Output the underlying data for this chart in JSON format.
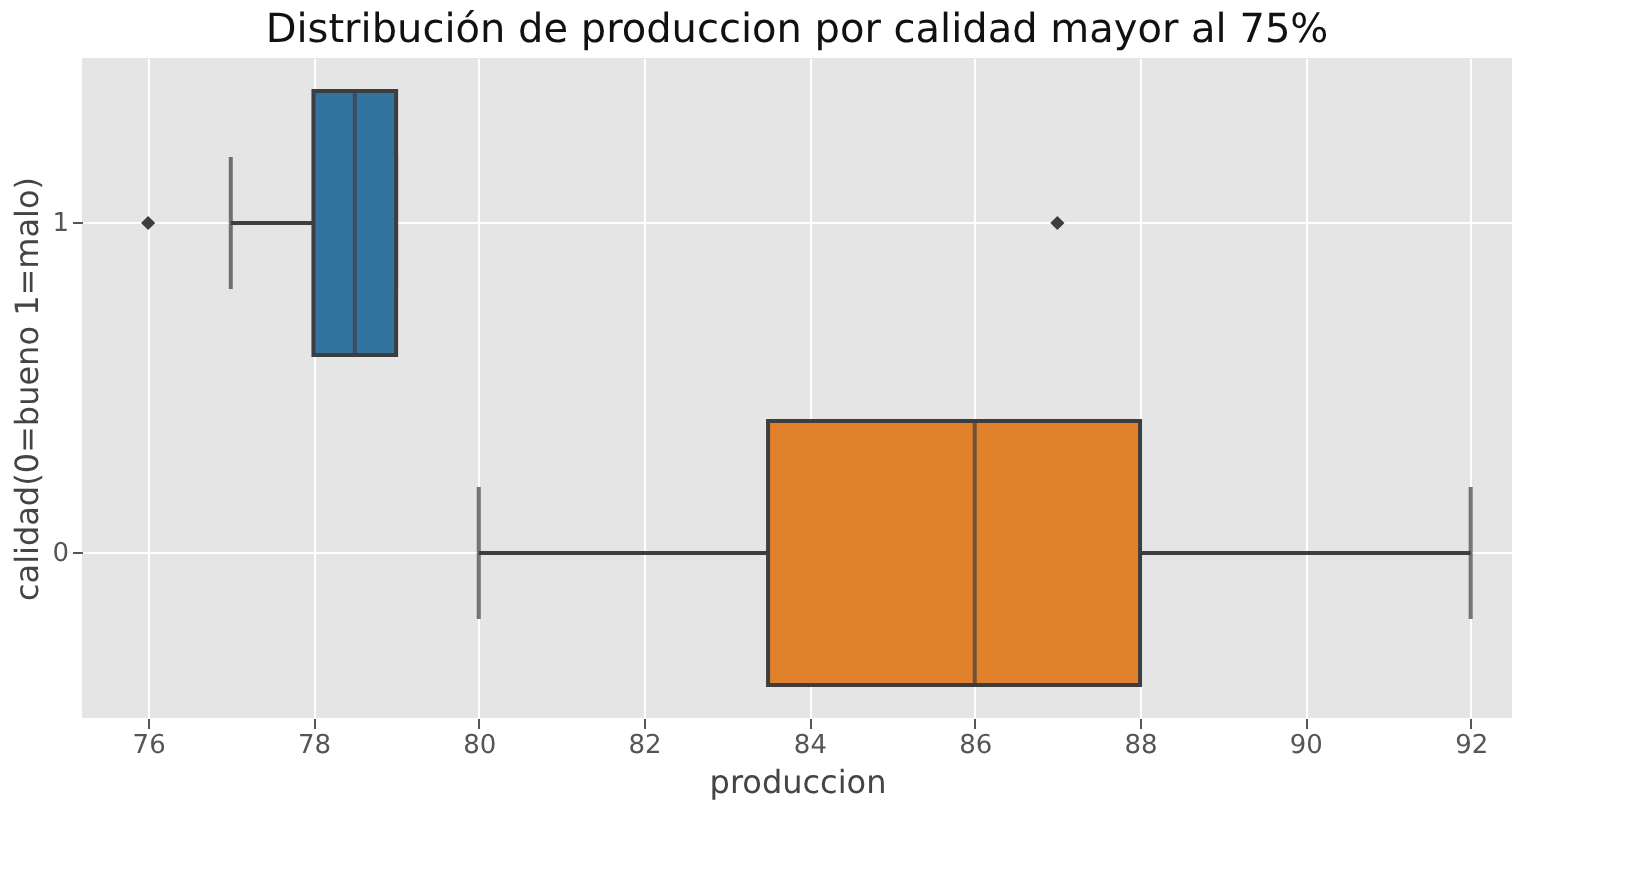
{
  "chart_data": {
    "type": "box",
    "orientation": "horizontal",
    "title": "Distribución de produccion por calidad mayor al 75%",
    "xlabel": "produccion",
    "ylabel": "calidad(0=bueno 1=malo)",
    "categories": [
      "1",
      "0"
    ],
    "boxes": [
      {
        "low": 77,
        "q1": 78,
        "median": 78.5,
        "q3": 79,
        "high": 79,
        "outliers": [
          76,
          87
        ]
      },
      {
        "low": 80,
        "q1": 83.5,
        "median": 86,
        "q3": 88,
        "high": 92
      }
    ],
    "colors": [
      "#3274a1",
      "#e1812c"
    ],
    "xlim": [
      75.2,
      92.5
    ],
    "xticks": [
      76,
      78,
      80,
      82,
      84,
      86,
      88,
      90,
      92
    ],
    "grid": true
  }
}
